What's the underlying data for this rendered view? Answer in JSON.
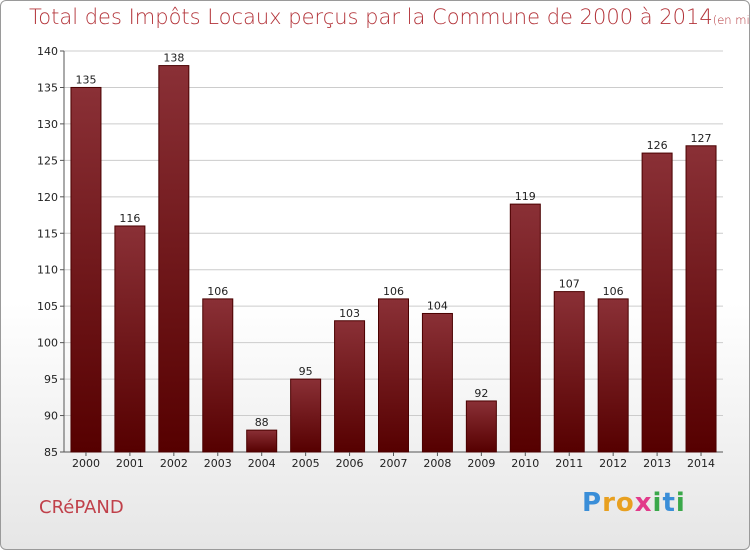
{
  "header": {
    "title": "Total des Impôts Locaux perçus par la Commune de 2000 à 2014",
    "unit": "(en milliers d'€)"
  },
  "commune": "CRéPAND",
  "logo": {
    "letters": [
      "P",
      "r",
      "o",
      "x",
      "i",
      "t",
      "i"
    ],
    "colors": [
      "#3a8ed8",
      "#e8a020",
      "#e8a020",
      "#e23a8a",
      "#3aa84a",
      "#3a8ed8",
      "#3aa84a"
    ]
  },
  "colors": {
    "bar_top": "#8a3036",
    "bar_bottom": "#560000",
    "bar_edge": "#4a0000",
    "grid": "#cccccc",
    "title": "#b3343a"
  },
  "chart_data": {
    "type": "bar",
    "title": "Total des Impôts Locaux perçus par la Commune de 2000 à 2014",
    "categories": [
      "2000",
      "2001",
      "2002",
      "2003",
      "2004",
      "2005",
      "2006",
      "2007",
      "2008",
      "2009",
      "2010",
      "2011",
      "2012",
      "2013",
      "2014"
    ],
    "values": [
      135,
      116,
      138,
      106,
      88,
      95,
      103,
      106,
      104,
      92,
      119,
      107,
      106,
      126,
      127
    ],
    "data_labels": [
      "135",
      "116",
      "138",
      "106",
      "88",
      "95",
      "103",
      "106",
      "104",
      "92",
      "119",
      "107",
      "106",
      "126",
      "127"
    ],
    "ylim": [
      85,
      140
    ],
    "yticks": [
      85,
      90,
      95,
      100,
      105,
      110,
      115,
      120,
      125,
      130,
      135,
      140
    ],
    "grid": true,
    "legend": "none"
  }
}
